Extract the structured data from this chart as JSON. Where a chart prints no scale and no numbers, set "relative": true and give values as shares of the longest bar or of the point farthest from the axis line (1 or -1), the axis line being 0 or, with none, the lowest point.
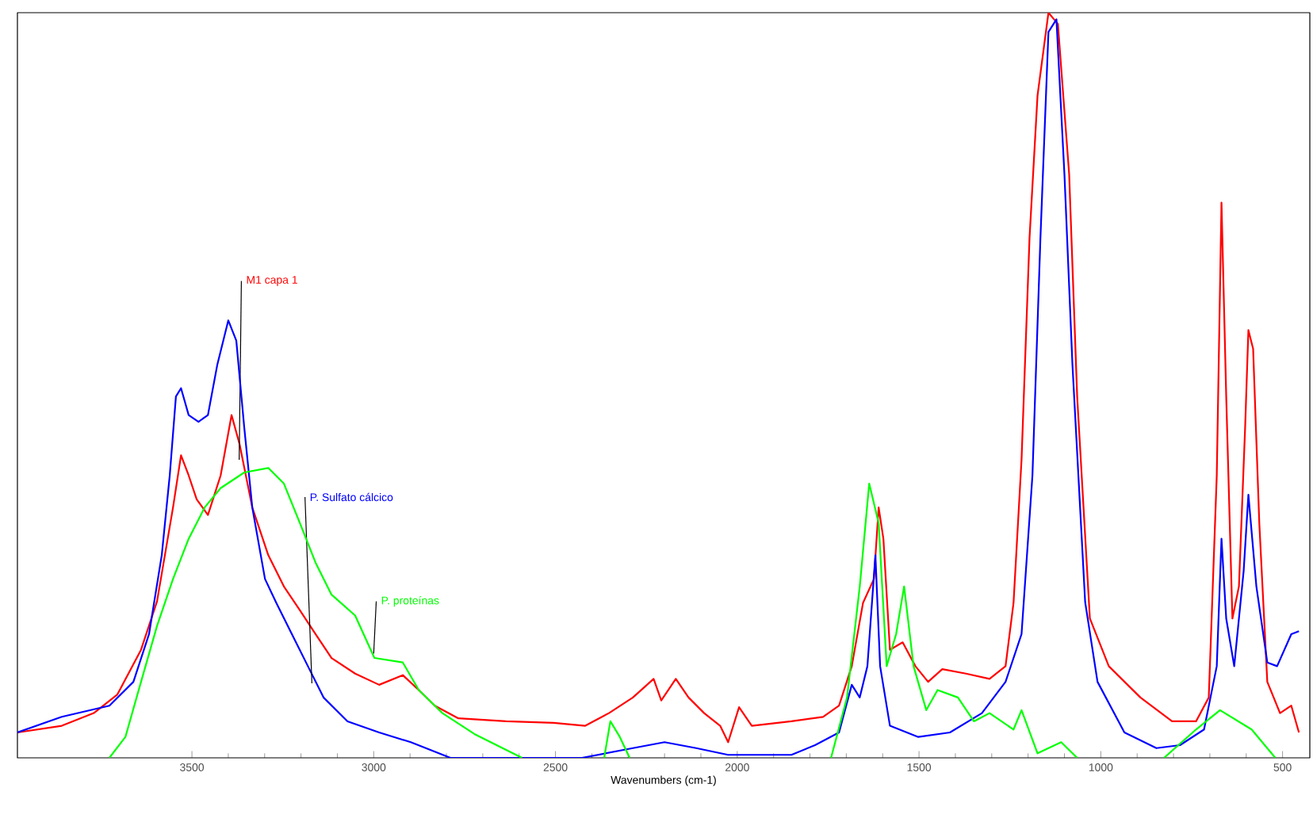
{
  "chart_data": {
    "type": "line",
    "xlabel": "Wavenumbers (cm-1)",
    "relative": true,
    "xlim": [
      3980,
      425
    ],
    "xticks": [
      3500,
      3000,
      2500,
      2000,
      1500,
      1000,
      500
    ],
    "grid": false,
    "legend": false,
    "x": [
      3980,
      3858,
      3770,
      3705,
      3640,
      3596,
      3552,
      3530,
      3509,
      3487,
      3456,
      3421,
      3391,
      3369,
      3334,
      3290,
      3247,
      3203,
      3160,
      3116,
      3051,
      2985,
      2920,
      2876,
      2832,
      2767,
      2636,
      2505,
      2418,
      2353,
      2287,
      2230,
      2209,
      2169,
      2134,
      2091,
      2047,
      2025,
      1995,
      1960,
      1851,
      1764,
      1720,
      1685,
      1654,
      1624,
      1611,
      1598,
      1580,
      1545,
      1510,
      1475,
      1436,
      1371,
      1306,
      1262,
      1240,
      1218,
      1196,
      1174,
      1144,
      1118,
      1087,
      1065,
      1030,
      978,
      891,
      804,
      738,
      703,
      681,
      668,
      655,
      638,
      620,
      603,
      594,
      581,
      564,
      542,
      507,
      476,
      455
    ],
    "series": [
      {
        "name": "M1 capa 1",
        "color": "#ff0000",
        "values": [
          0.034,
          0.043,
          0.06,
          0.085,
          0.145,
          0.21,
          0.336,
          0.406,
          0.379,
          0.347,
          0.326,
          0.379,
          0.46,
          0.421,
          0.336,
          0.272,
          0.23,
          0.198,
          0.166,
          0.134,
          0.113,
          0.098,
          0.111,
          0.091,
          0.07,
          0.053,
          0.049,
          0.047,
          0.043,
          0.06,
          0.081,
          0.106,
          0.077,
          0.106,
          0.081,
          0.06,
          0.043,
          0.021,
          0.068,
          0.043,
          0.049,
          0.055,
          0.07,
          0.123,
          0.208,
          0.24,
          0.336,
          0.294,
          0.145,
          0.155,
          0.123,
          0.102,
          0.119,
          0.113,
          0.106,
          0.123,
          0.208,
          0.4,
          0.698,
          0.889,
          1,
          0.985,
          0.783,
          0.485,
          0.187,
          0.123,
          0.081,
          0.049,
          0.049,
          0.081,
          0.379,
          0.745,
          0.485,
          0.187,
          0.23,
          0.443,
          0.574,
          0.549,
          0.315,
          0.102,
          0.06,
          0.07,
          0.034
        ]
      },
      {
        "name": "P. Sulfato cálcico",
        "color": "#0000ff",
        "x": [
          3980,
          3858,
          3727,
          3661,
          3618,
          3583,
          3561,
          3544,
          3530,
          3509,
          3482,
          3456,
          3430,
          3400,
          3378,
          3356,
          3334,
          3299,
          3269,
          3225,
          3181,
          3138,
          3072,
          2985,
          2898,
          2789,
          2427,
          2287,
          2200,
          2113,
          2025,
          1851,
          1786,
          1720,
          1685,
          1663,
          1642,
          1620,
          1607,
          1580,
          1502,
          1415,
          1327,
          1262,
          1218,
          1188,
          1166,
          1144,
          1122,
          1100,
          1078,
          1043,
          1009,
          935,
          847,
          782,
          716,
          681,
          668,
          655,
          633,
          607,
          594,
          572,
          542,
          515,
          476,
          455
        ],
        "values": [
          0.034,
          0.055,
          0.07,
          0.102,
          0.166,
          0.272,
          0.379,
          0.485,
          0.496,
          0.46,
          0.451,
          0.46,
          0.528,
          0.587,
          0.56,
          0.443,
          0.336,
          0.24,
          0.209,
          0.166,
          0.123,
          0.081,
          0.049,
          0.034,
          0.021,
          0,
          0,
          0.013,
          0.021,
          0.013,
          0.004,
          0.004,
          0.017,
          0.034,
          0.098,
          0.081,
          0.123,
          0.272,
          0.123,
          0.043,
          0.028,
          0.034,
          0.06,
          0.102,
          0.166,
          0.379,
          0.698,
          0.974,
          0.991,
          0.783,
          0.528,
          0.209,
          0.102,
          0.034,
          0.013,
          0.017,
          0.038,
          0.123,
          0.294,
          0.187,
          0.123,
          0.251,
          0.353,
          0.23,
          0.128,
          0.123,
          0.166,
          0.17
        ]
      },
      {
        "name": "P. proteínas",
        "color": "#00ff00",
        "x": [
          3727,
          3683,
          3640,
          3596,
          3552,
          3509,
          3465,
          3421,
          3356,
          3290,
          3247,
          3203,
          3160,
          3116,
          3051,
          2998,
          2920,
          2876,
          2811,
          2723,
          2592,
          2480,
          2366,
          2349,
          2323,
          2296,
          2000,
          1742,
          1698,
          1663,
          1637,
          1611,
          1589,
          1563,
          1541,
          1515,
          1480,
          1449,
          1393,
          1349,
          1306,
          1240,
          1218,
          1174,
          1109,
          1065,
          950,
          826,
          738,
          672,
          585,
          520
        ],
        "values": [
          0,
          0.028,
          0.102,
          0.177,
          0.24,
          0.294,
          0.336,
          0.362,
          0.383,
          0.389,
          0.368,
          0.315,
          0.262,
          0.219,
          0.191,
          0.134,
          0.128,
          0.091,
          0.06,
          0.032,
          0,
          null,
          0,
          0.049,
          0.028,
          0,
          null,
          0,
          0.081,
          0.23,
          0.368,
          0.315,
          0.123,
          0.166,
          0.23,
          0.123,
          0.064,
          0.091,
          0.081,
          0.049,
          0.06,
          0.038,
          0.064,
          0.006,
          0.021,
          0,
          null,
          0,
          0.038,
          0.064,
          0.038,
          0
        ]
      }
    ]
  }
}
